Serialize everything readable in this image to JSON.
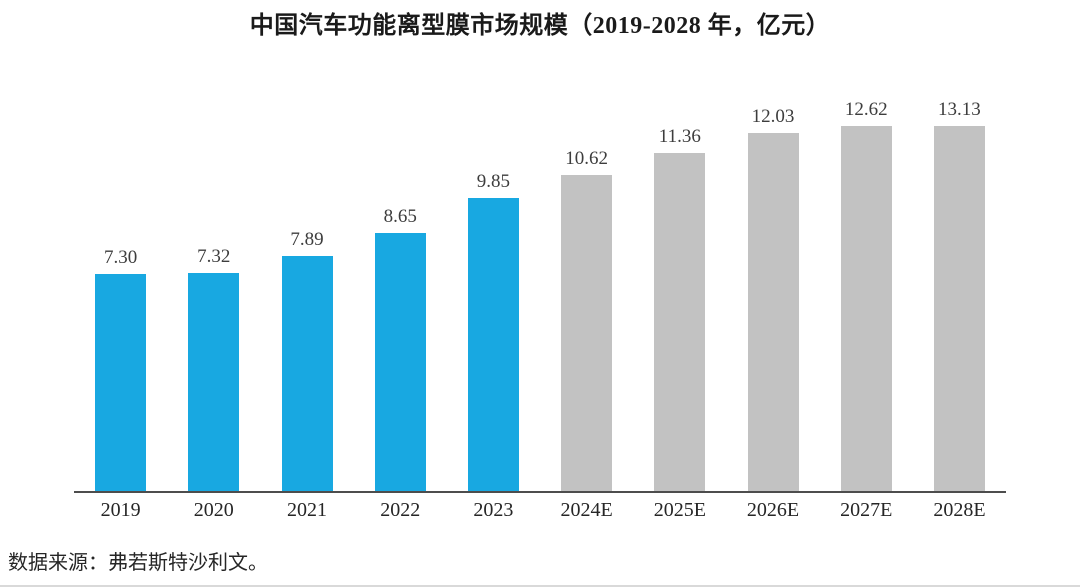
{
  "chart_data": {
    "type": "bar",
    "title": "中国汽车功能离型膜市场规模（2019-2028 年，亿元）",
    "categories": [
      "2019",
      "2020",
      "2021",
      "2022",
      "2023",
      "2024E",
      "2025E",
      "2026E",
      "2027E",
      "2028E"
    ],
    "values": [
      7.3,
      7.32,
      7.89,
      8.65,
      9.85,
      10.62,
      11.36,
      12.03,
      12.62,
      13.13
    ],
    "value_labels": [
      "7.30",
      "7.32",
      "7.89",
      "8.65",
      "9.85",
      "10.62",
      "11.36",
      "12.03",
      "12.62",
      "13.13"
    ],
    "unit": "亿元",
    "xlabel": "",
    "ylabel": "",
    "ylim": [
      0,
      13.13
    ],
    "grid": false,
    "legend": "none",
    "colors": {
      "historical_bar": "#18a8e1",
      "forecast_bar": "#c2c2c2",
      "axis_line": "#4d4d4d"
    },
    "historical_count": 5,
    "source": "数据来源：弗若斯特沙利文。"
  }
}
